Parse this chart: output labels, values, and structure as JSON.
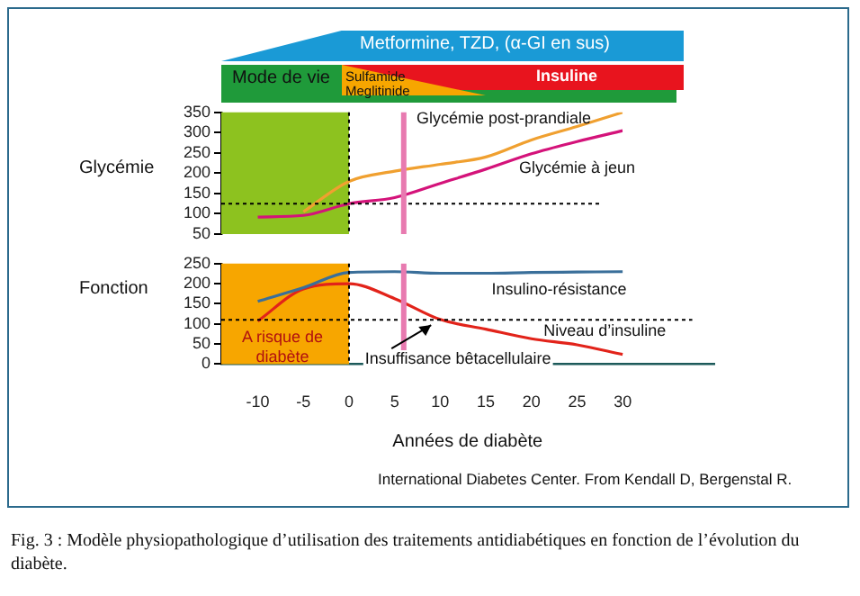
{
  "chart_data": [
    {
      "type": "line",
      "ylabel": "Glycémie",
      "x": [
        -10,
        -5,
        0,
        5,
        10,
        15,
        20,
        25,
        30
      ],
      "xlim": [
        -14,
        30
      ],
      "xticks": [
        -10,
        -5,
        0,
        5,
        10,
        15,
        20,
        25,
        30
      ],
      "ylim": [
        50,
        350
      ],
      "yticks": [
        50,
        100,
        150,
        200,
        250,
        300,
        350
      ],
      "tick_labels": "y",
      "grid": false,
      "legend": false,
      "marker": "none",
      "line_style": "solid",
      "series": [
        {
          "name": "Glycémie post-prandiale",
          "color": "#f0a030",
          "values": [
            null,
            105,
            180,
            205,
            222,
            240,
            282,
            315,
            350
          ]
        },
        {
          "name": "Glycémie à jeun",
          "color": "#d4137a",
          "values": [
            92,
            96,
            125,
            140,
            175,
            210,
            248,
            278,
            305
          ]
        }
      ],
      "bands": [
        {
          "axis": "x",
          "from": -14,
          "to": 0,
          "color": "#8dc21f"
        }
      ],
      "ref_lines": [
        {
          "axis": "y",
          "value": 125,
          "color": "#000000",
          "line_style": "dotted"
        },
        {
          "axis": "x",
          "value": 0,
          "color": "#000000",
          "line_style": "dotted"
        },
        {
          "axis": "x",
          "value": 6,
          "color": "#e87ab0",
          "line_style": "solid"
        }
      ],
      "annotations": [
        "Metformine, TZD, (α-GI en sus)",
        "Mode de vie",
        "Sulfamide",
        "Meglitinide",
        "Insuline"
      ]
    },
    {
      "type": "line",
      "ylabel": "Fonction",
      "xlabel": "Années de diabète",
      "x": [
        -10,
        -5,
        0,
        5,
        10,
        15,
        20,
        25,
        30
      ],
      "xlim": [
        -14,
        40
      ],
      "xticks": [
        -10,
        -5,
        0,
        5,
        10,
        15,
        20,
        25,
        30
      ],
      "ylim": [
        0,
        250
      ],
      "yticks": [
        0,
        50,
        100,
        150,
        200,
        250
      ],
      "grid": false,
      "legend": false,
      "marker": "none",
      "line_style": "solid",
      "series": [
        {
          "name": "Insulino-résistance",
          "color": "#3a6f9a",
          "values": [
            156,
            190,
            228,
            230,
            226,
            226,
            228,
            229,
            230
          ]
        },
        {
          "name": "Niveau d’insuline",
          "color": "#e2231a",
          "values": [
            107,
            187,
            200,
            163,
            111,
            87,
            63,
            48,
            24
          ]
        }
      ],
      "bands": [
        {
          "axis": "x",
          "from": -14,
          "to": 0,
          "color": "#f7a600"
        }
      ],
      "ref_lines": [
        {
          "axis": "y",
          "value": 110,
          "color": "#000000",
          "line_style": "dotted"
        },
        {
          "axis": "x",
          "value": 0,
          "color": "#000000",
          "line_style": "dotted"
        },
        {
          "axis": "x",
          "value": 6,
          "color": "#e87ab0",
          "line_style": "solid"
        }
      ],
      "annotations": [
        {
          "text": "Insuffisance bêtacellulaire",
          "x": 9,
          "y": 97
        },
        "A risque de diabète",
        "International Diabetes Center. From Kendall D, Bergenstal R.",
        "Fig. 3 : Modèle physiopathologique d’utilisation des traitements antidiabétiques en fonction de l’évolution du diabète."
      ]
    }
  ]
}
